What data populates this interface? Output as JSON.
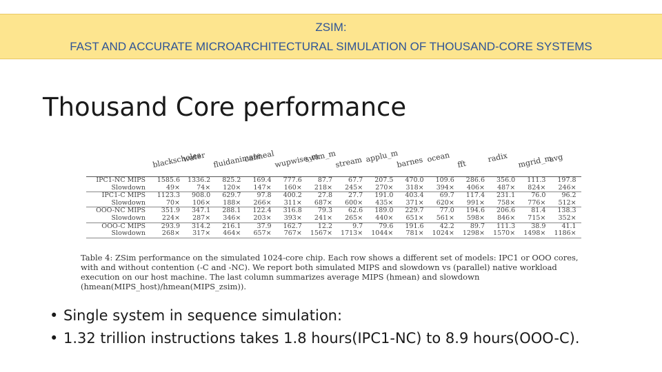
{
  "banner": {
    "line1": "ZSIM:",
    "line2": "FAST AND ACCURATE MICROARCHITECTURAL SIMULATION OF THOUSAND-CORE SYSTEMS"
  },
  "heading": "Thousand Core performance",
  "table": {
    "columns": [
      "blackscholes",
      "water",
      "fluidanimate",
      "canneal",
      "wupwise_m",
      "swim_m",
      "stream",
      "applu_m",
      "barnes",
      "ocean",
      "fft",
      "radix",
      "mgrid_m",
      "avg"
    ],
    "rows": [
      {
        "label": "IPC1-NC MIPS",
        "values": [
          "1585.6",
          "1336.2",
          "825.2",
          "169.4",
          "777.6",
          "87.7",
          "67.7",
          "207.5",
          "470.0",
          "109.6",
          "286.6",
          "356.0",
          "111.3",
          "197.8"
        ]
      },
      {
        "label": "Slowdown",
        "values": [
          "49×",
          "74×",
          "120×",
          "147×",
          "160×",
          "218×",
          "245×",
          "270×",
          "318×",
          "394×",
          "406×",
          "487×",
          "824×",
          "246×"
        ]
      },
      {
        "label": "IPC1-C MIPS",
        "values": [
          "1123.3",
          "908.0",
          "629.7",
          "97.8",
          "400.2",
          "27.8",
          "27.7",
          "191.0",
          "403.4",
          "69.7",
          "117.4",
          "231.1",
          "76.0",
          "96.2"
        ]
      },
      {
        "label": "Slowdown",
        "values": [
          "70×",
          "106×",
          "188×",
          "266×",
          "311×",
          "687×",
          "600×",
          "435×",
          "371×",
          "620×",
          "991×",
          "758×",
          "776×",
          "512×"
        ]
      },
      {
        "label": "OOO-NC MIPS",
        "values": [
          "351.9",
          "347.1",
          "288.1",
          "122.4",
          "316.8",
          "79.3",
          "62.6",
          "189.0",
          "229.7",
          "77.0",
          "194.6",
          "206.6",
          "81.4",
          "138.3"
        ]
      },
      {
        "label": "Slowdown",
        "values": [
          "224×",
          "287×",
          "346×",
          "203×",
          "393×",
          "241×",
          "265×",
          "440×",
          "651×",
          "561×",
          "598×",
          "846×",
          "715×",
          "352×"
        ]
      },
      {
        "label": "OOO-C MIPS",
        "values": [
          "293.9",
          "314.2",
          "216.1",
          "37.9",
          "162.7",
          "12.2",
          "9.7",
          "79.6",
          "191.6",
          "42.2",
          "89.7",
          "111.3",
          "38.9",
          "41.1"
        ]
      },
      {
        "label": "Slowdown",
        "values": [
          "268×",
          "317×",
          "464×",
          "657×",
          "767×",
          "1567×",
          "1713×",
          "1044×",
          "781×",
          "1024×",
          "1298×",
          "1570×",
          "1498×",
          "1186×"
        ]
      }
    ],
    "caption": "Table 4: ZSim performance on the simulated 1024-core chip. Each row shows a different set of models: IPC1 or OOO cores, with and without contention (-C and -NC). We report both simulated MIPS and slowdown vs (parallel) native workload execution on our host machine. The last column summarizes average MIPS (hmean) and slowdown (hmean(MIPS_host)/hmean(MIPS_zsim))."
  },
  "bullets": [
    "Single system in sequence simulation:",
    " 1.32 trillion instructions takes 1.8 hours(IPC1-NC) to 8.9 hours(OOO-C)."
  ]
}
